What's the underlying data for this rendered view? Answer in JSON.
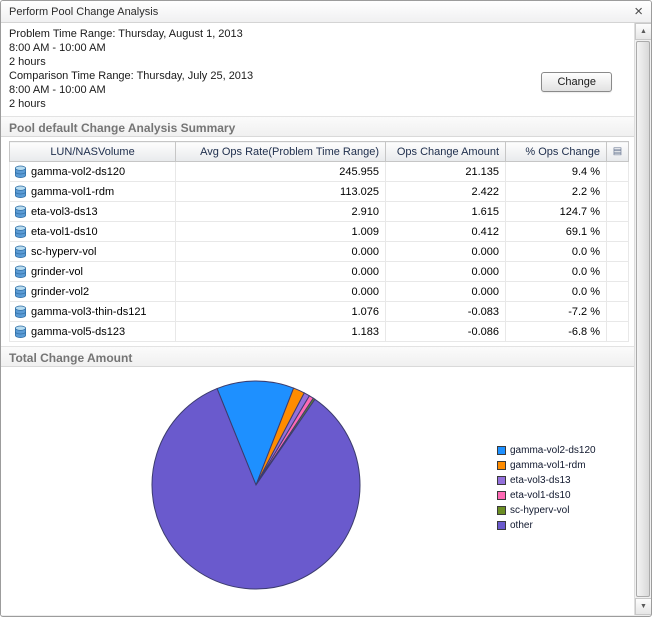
{
  "window": {
    "title": "Perform Pool Change Analysis"
  },
  "icons": {
    "close": "×",
    "scroll_up": "▲",
    "scroll_down": "▼",
    "column_chooser": "▤"
  },
  "time_ranges": {
    "problem": {
      "label": "Problem Time Range: Thursday, August 1, 2013",
      "time": "8:00 AM - 10:00 AM",
      "duration": "2 hours"
    },
    "comparison": {
      "label": "Comparison Time Range: Thursday, July 25, 2013",
      "time": "8:00 AM - 10:00 AM",
      "duration": "2 hours"
    },
    "change_button_label": "Change"
  },
  "summary": {
    "section_title": "Pool default Change Analysis Summary",
    "columns": [
      "LUN/NASVolume",
      "Avg Ops Rate(Problem Time Range)",
      "Ops Change Amount",
      "% Ops Change"
    ],
    "rows": [
      {
        "name": "gamma-vol2-ds120",
        "avg_ops_rate": "245.955",
        "ops_change_amount": "21.135",
        "pct_ops_change": "9.4 %"
      },
      {
        "name": "gamma-vol1-rdm",
        "avg_ops_rate": "113.025",
        "ops_change_amount": "2.422",
        "pct_ops_change": "2.2 %"
      },
      {
        "name": "eta-vol3-ds13",
        "avg_ops_rate": "2.910",
        "ops_change_amount": "1.615",
        "pct_ops_change": "124.7 %"
      },
      {
        "name": "eta-vol1-ds10",
        "avg_ops_rate": "1.009",
        "ops_change_amount": "0.412",
        "pct_ops_change": "69.1 %"
      },
      {
        "name": "sc-hyperv-vol",
        "avg_ops_rate": "0.000",
        "ops_change_amount": "0.000",
        "pct_ops_change": "0.0 %"
      },
      {
        "name": "grinder-vol",
        "avg_ops_rate": "0.000",
        "ops_change_amount": "0.000",
        "pct_ops_change": "0.0 %"
      },
      {
        "name": "grinder-vol2",
        "avg_ops_rate": "0.000",
        "ops_change_amount": "0.000",
        "pct_ops_change": "0.0 %"
      },
      {
        "name": "gamma-vol3-thin-ds121",
        "avg_ops_rate": "1.076",
        "ops_change_amount": "-0.083",
        "pct_ops_change": "-7.2 %"
      },
      {
        "name": "gamma-vol5-ds123",
        "avg_ops_rate": "1.183",
        "ops_change_amount": "-0.086",
        "pct_ops_change": "-6.8 %"
      }
    ]
  },
  "chart_section_title": "Total Change Amount",
  "chart_data": {
    "type": "pie",
    "title": "Total Change Amount",
    "legend_position": "right",
    "start_angle_deg": 112,
    "slices": [
      {
        "label": "gamma-vol2-ds120",
        "value": 12.0,
        "color": "#1e90ff"
      },
      {
        "label": "gamma-vol1-rdm",
        "value": 1.8,
        "color": "#ff8c00"
      },
      {
        "label": "eta-vol3-ds13",
        "value": 0.9,
        "color": "#9370db"
      },
      {
        "label": "eta-vol1-ds10",
        "value": 0.7,
        "color": "#ff69b4"
      },
      {
        "label": "sc-hyperv-vol",
        "value": 0.3,
        "color": "#6b8e23"
      },
      {
        "label": "other",
        "value": 84.3,
        "color": "#6a5acd"
      }
    ]
  }
}
